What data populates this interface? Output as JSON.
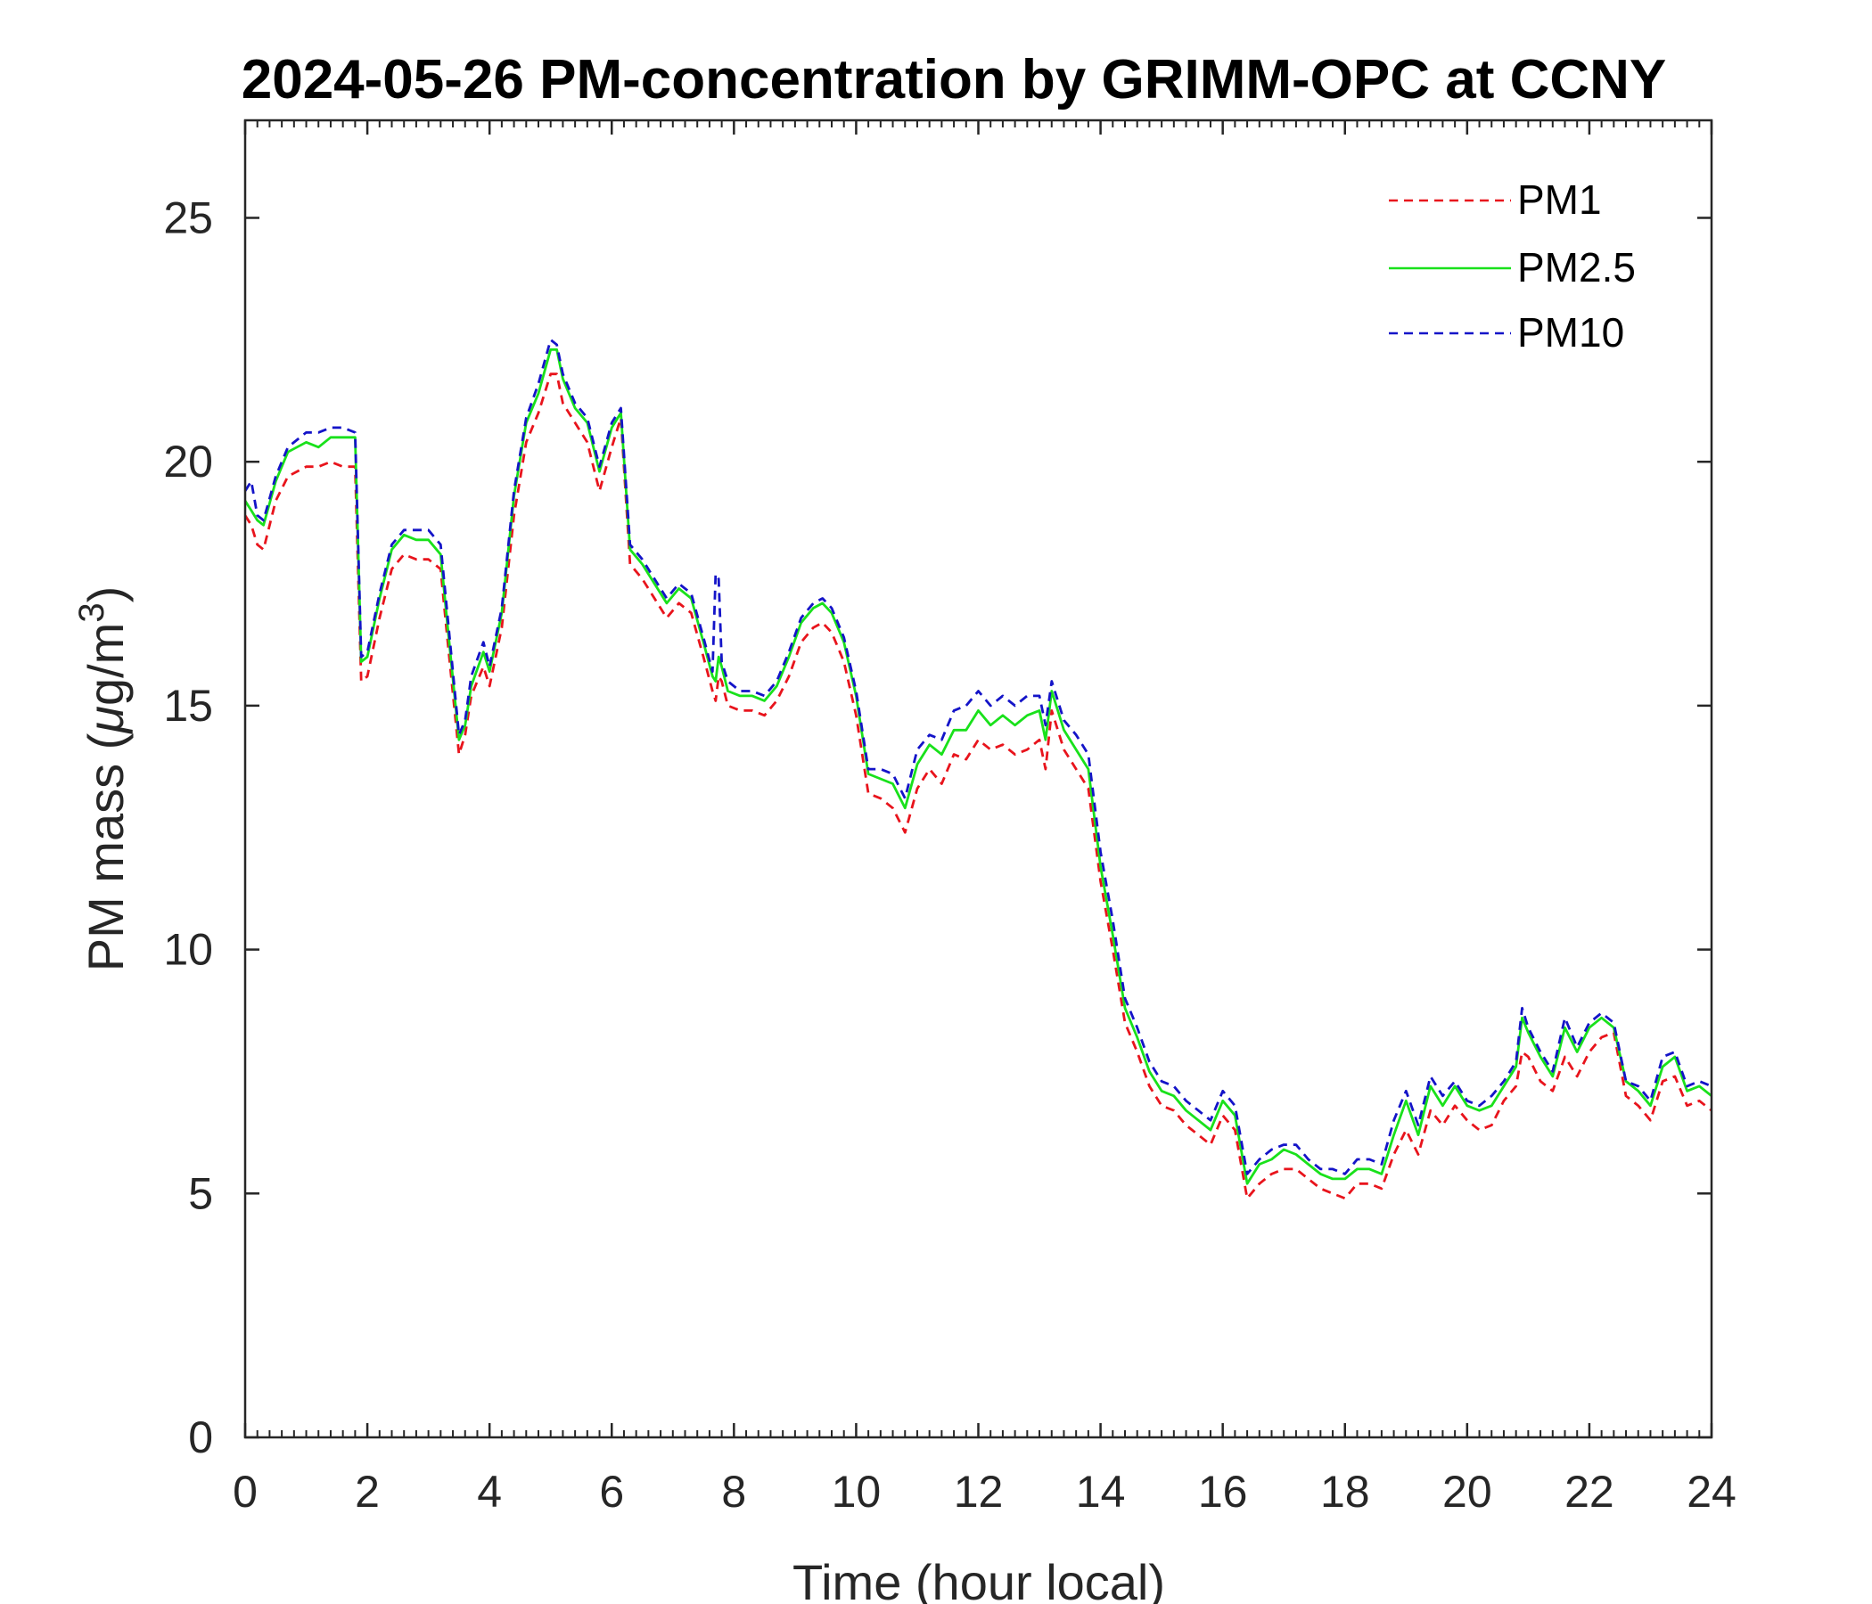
{
  "chart_data": {
    "type": "line",
    "title": "2024-05-26 PM-concentration by GRIMM-OPC at CCNY",
    "xlabel": "Time (hour local)",
    "ylabel_main": "PM mass (",
    "ylabel_mu": "μ",
    "ylabel_unit": "g/m",
    "ylabel_sup": "3",
    "ylabel_close": ")",
    "xlim": [
      0,
      24
    ],
    "ylim": [
      0,
      27
    ],
    "xticks": [
      0,
      2,
      4,
      6,
      8,
      10,
      12,
      14,
      16,
      18,
      20,
      22,
      24
    ],
    "xtick_labels": [
      "0",
      "2",
      "4",
      "6",
      "8",
      "10",
      "12",
      "14",
      "16",
      "18",
      "20",
      "22",
      "24"
    ],
    "yticks": [
      0,
      5,
      10,
      15,
      20,
      25
    ],
    "ytick_labels": [
      "0",
      "5",
      "10",
      "15",
      "20",
      "25"
    ],
    "legend_position": "top-right",
    "x": [
      0,
      0.1,
      0.2,
      0.3,
      0.5,
      0.7,
      1.0,
      1.2,
      1.4,
      1.6,
      1.8,
      1.9,
      2.0,
      2.2,
      2.4,
      2.6,
      2.8,
      3.0,
      3.2,
      3.3,
      3.5,
      3.6,
      3.7,
      3.9,
      4.0,
      4.2,
      4.4,
      4.6,
      4.8,
      5.0,
      5.1,
      5.2,
      5.4,
      5.6,
      5.8,
      6.0,
      6.15,
      6.3,
      6.5,
      6.7,
      6.9,
      7.1,
      7.3,
      7.5,
      7.65,
      7.7,
      7.75,
      7.8,
      7.9,
      8.1,
      8.3,
      8.5,
      8.7,
      8.9,
      9.1,
      9.3,
      9.45,
      9.6,
      9.8,
      10.0,
      10.2,
      10.4,
      10.6,
      10.8,
      11.0,
      11.2,
      11.4,
      11.6,
      11.8,
      12.0,
      12.2,
      12.4,
      12.6,
      12.8,
      13.0,
      13.1,
      13.2,
      13.4,
      13.6,
      13.8,
      14.0,
      14.2,
      14.4,
      14.6,
      14.8,
      15.0,
      15.2,
      15.4,
      15.6,
      15.8,
      16.0,
      16.2,
      16.4,
      16.6,
      16.8,
      17.0,
      17.2,
      17.4,
      17.6,
      17.8,
      18.0,
      18.2,
      18.4,
      18.6,
      18.8,
      19.0,
      19.2,
      19.4,
      19.6,
      19.8,
      20.0,
      20.2,
      20.4,
      20.6,
      20.8,
      20.9,
      21.0,
      21.2,
      21.4,
      21.6,
      21.8,
      22.0,
      22.2,
      22.4,
      22.6,
      22.8,
      23.0,
      23.2,
      23.4,
      23.6,
      23.8,
      24.0
    ],
    "series": [
      {
        "name": "PM1",
        "color": "#e8141c",
        "dash": "dashed",
        "values": [
          18.9,
          18.7,
          18.3,
          18.2,
          19.2,
          19.7,
          19.9,
          19.9,
          20.0,
          19.9,
          19.9,
          15.5,
          15.6,
          16.8,
          17.8,
          18.1,
          18.0,
          18.0,
          17.8,
          16.5,
          14.0,
          14.4,
          15.2,
          15.8,
          15.4,
          16.6,
          18.9,
          20.4,
          21.0,
          21.8,
          21.8,
          21.2,
          20.8,
          20.4,
          19.4,
          20.3,
          20.9,
          17.9,
          17.6,
          17.2,
          16.8,
          17.1,
          16.9,
          16.0,
          15.3,
          15.1,
          15.6,
          15.5,
          15.0,
          14.9,
          14.9,
          14.8,
          15.1,
          15.6,
          16.3,
          16.6,
          16.7,
          16.5,
          15.9,
          14.8,
          13.2,
          13.1,
          12.9,
          12.4,
          13.3,
          13.7,
          13.4,
          14.0,
          13.9,
          14.3,
          14.1,
          14.2,
          14.0,
          14.1,
          14.3,
          13.7,
          14.9,
          14.1,
          13.7,
          13.3,
          11.4,
          10.0,
          8.5,
          7.9,
          7.2,
          6.8,
          6.7,
          6.4,
          6.2,
          6.0,
          6.6,
          6.3,
          4.9,
          5.2,
          5.4,
          5.5,
          5.5,
          5.3,
          5.1,
          5.0,
          4.9,
          5.2,
          5.2,
          5.1,
          5.8,
          6.3,
          5.8,
          6.7,
          6.4,
          6.8,
          6.5,
          6.3,
          6.4,
          6.9,
          7.2,
          7.9,
          7.8,
          7.3,
          7.1,
          7.8,
          7.4,
          7.9,
          8.2,
          8.3,
          7.0,
          6.8,
          6.5,
          7.3,
          7.4,
          6.8,
          6.9,
          6.7
        ]
      },
      {
        "name": "PM2.5",
        "color": "#19e11b",
        "dash": "solid",
        "values": [
          19.2,
          19.0,
          18.8,
          18.7,
          19.6,
          20.2,
          20.4,
          20.3,
          20.5,
          20.5,
          20.5,
          15.9,
          16.0,
          17.2,
          18.2,
          18.5,
          18.4,
          18.4,
          18.1,
          16.8,
          14.3,
          14.6,
          15.4,
          16.1,
          15.7,
          16.9,
          19.3,
          20.8,
          21.4,
          22.3,
          22.3,
          21.7,
          21.1,
          20.8,
          19.8,
          20.7,
          21.0,
          18.2,
          17.9,
          17.5,
          17.1,
          17.4,
          17.2,
          16.3,
          15.6,
          15.5,
          16.0,
          15.8,
          15.3,
          15.2,
          15.2,
          15.1,
          15.4,
          16.0,
          16.7,
          17.0,
          17.1,
          16.9,
          16.3,
          15.2,
          13.6,
          13.5,
          13.4,
          12.9,
          13.8,
          14.2,
          14.0,
          14.5,
          14.5,
          14.9,
          14.6,
          14.8,
          14.6,
          14.8,
          14.9,
          14.3,
          15.3,
          14.5,
          14.1,
          13.7,
          11.7,
          10.3,
          8.8,
          8.2,
          7.5,
          7.1,
          7.0,
          6.7,
          6.5,
          6.3,
          6.9,
          6.6,
          5.2,
          5.6,
          5.7,
          5.9,
          5.8,
          5.6,
          5.4,
          5.3,
          5.3,
          5.5,
          5.5,
          5.4,
          6.2,
          6.9,
          6.2,
          7.2,
          6.8,
          7.2,
          6.8,
          6.7,
          6.8,
          7.2,
          7.6,
          8.6,
          8.3,
          7.8,
          7.4,
          8.4,
          7.9,
          8.4,
          8.6,
          8.4,
          7.3,
          7.1,
          6.8,
          7.6,
          7.8,
          7.1,
          7.2,
          7.0
        ]
      },
      {
        "name": "PM10",
        "color": "#1414c8",
        "dash": "dashed",
        "values": [
          19.4,
          19.6,
          18.9,
          18.8,
          19.7,
          20.3,
          20.6,
          20.6,
          20.7,
          20.7,
          20.6,
          16.0,
          16.1,
          17.3,
          18.3,
          18.6,
          18.6,
          18.6,
          18.3,
          17.0,
          14.4,
          14.7,
          15.6,
          16.3,
          15.8,
          17.0,
          19.4,
          20.9,
          21.6,
          22.5,
          22.4,
          21.8,
          21.2,
          20.9,
          19.9,
          20.8,
          21.1,
          18.3,
          18.0,
          17.6,
          17.2,
          17.5,
          17.3,
          16.4,
          15.7,
          17.7,
          17.6,
          15.9,
          15.5,
          15.3,
          15.3,
          15.2,
          15.5,
          16.1,
          16.8,
          17.1,
          17.2,
          17.0,
          16.4,
          15.3,
          13.7,
          13.7,
          13.6,
          13.1,
          14.1,
          14.4,
          14.3,
          14.9,
          15.0,
          15.3,
          15.0,
          15.2,
          15.0,
          15.2,
          15.2,
          14.6,
          15.5,
          14.7,
          14.4,
          14.0,
          12.0,
          10.6,
          9.0,
          8.4,
          7.7,
          7.3,
          7.2,
          6.9,
          6.7,
          6.5,
          7.1,
          6.8,
          5.4,
          5.7,
          5.9,
          6.0,
          6.0,
          5.7,
          5.5,
          5.5,
          5.4,
          5.7,
          5.7,
          5.6,
          6.5,
          7.1,
          6.4,
          7.4,
          7.0,
          7.3,
          6.9,
          6.8,
          7.0,
          7.3,
          7.7,
          8.8,
          8.4,
          7.9,
          7.5,
          8.6,
          8.0,
          8.5,
          8.7,
          8.5,
          7.3,
          7.2,
          6.9,
          7.8,
          7.9,
          7.2,
          7.3,
          7.2
        ]
      }
    ]
  }
}
